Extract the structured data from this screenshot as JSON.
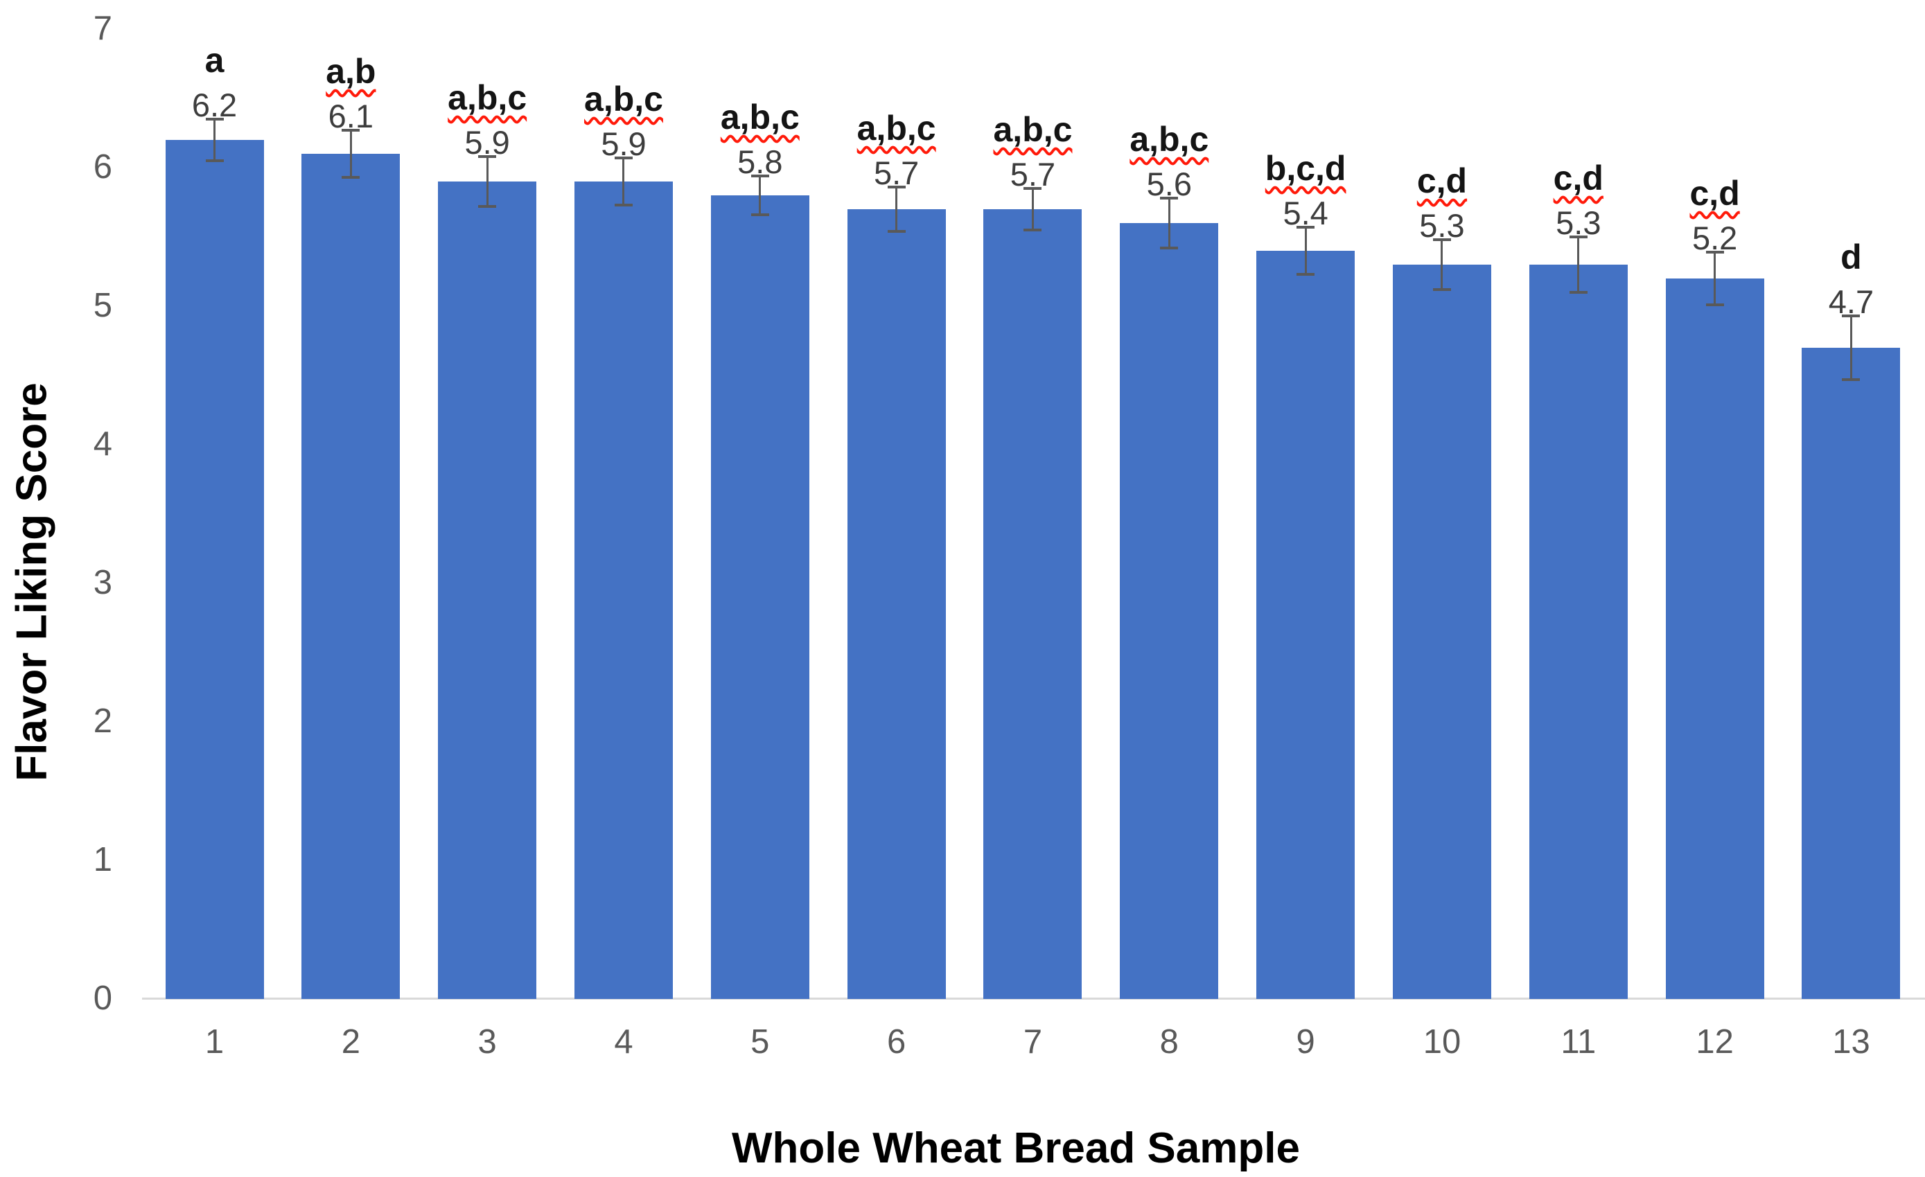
{
  "chart_data": {
    "type": "bar",
    "title": "",
    "xlabel": "Whole Wheat Bread Sample",
    "ylabel": "Flavor Liking Score",
    "categories": [
      "1",
      "2",
      "3",
      "4",
      "5",
      "6",
      "7",
      "8",
      "9",
      "10",
      "11",
      "12",
      "13"
    ],
    "values": [
      6.2,
      6.1,
      5.9,
      5.9,
      5.8,
      5.7,
      5.7,
      5.6,
      5.4,
      5.3,
      5.3,
      5.2,
      4.7
    ],
    "significance_letters": [
      "a",
      "a,b",
      "a,b,c",
      "a,b,c",
      "a,b,c",
      "a,b,c",
      "a,b,c",
      "a,b,c",
      "b,c,d",
      "c,d",
      "c,d",
      "c,d",
      "d"
    ],
    "spellcheck_squiggle": [
      false,
      true,
      true,
      true,
      true,
      true,
      true,
      true,
      true,
      true,
      true,
      true,
      false
    ],
    "error_bars_estimated": [
      0.15,
      0.17,
      0.18,
      0.17,
      0.14,
      0.16,
      0.15,
      0.18,
      0.17,
      0.18,
      0.2,
      0.19,
      0.23
    ],
    "ylim": [
      0,
      7
    ],
    "yticks": [
      0,
      1,
      2,
      3,
      4,
      5,
      6,
      7
    ],
    "grid": false,
    "legend": "none",
    "bar_color_name": "blue",
    "colors": {
      "bar_fill": "#4472C4",
      "error_bar": "#595959",
      "tick_label": "#595959",
      "value_label": "#3d3d3d",
      "letter_label": "#141414",
      "axis_title": "#000000",
      "axis_line": "#D9D9D9",
      "squiggle": "#FF1A0A"
    }
  }
}
